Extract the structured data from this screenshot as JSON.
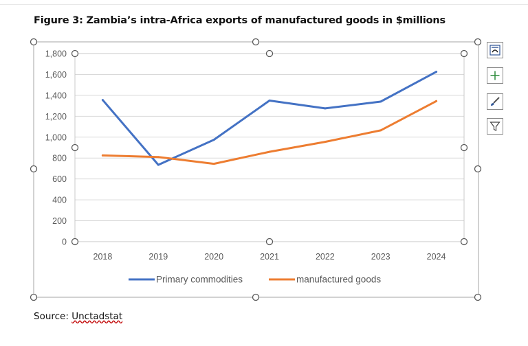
{
  "document": {
    "figure_title": "Figure 3: Zambia’s intra-Africa exports of manufactured goods in $millions",
    "source_prefix": "Source: ",
    "source_name": "Unctadstat"
  },
  "chart_tools": [
    {
      "name": "chart-layout-icon"
    },
    {
      "name": "chart-elements-icon"
    },
    {
      "name": "chart-styles-icon"
    },
    {
      "name": "chart-filters-icon"
    }
  ],
  "chart_data": {
    "type": "line",
    "title": "",
    "xlabel": "",
    "ylabel": "",
    "categories": [
      "2018",
      "2019",
      "2020",
      "2021",
      "2022",
      "2023",
      "2024"
    ],
    "ylim": [
      0,
      1800
    ],
    "yticks": [
      0,
      200,
      400,
      600,
      800,
      1000,
      1200,
      1400,
      1600,
      1800
    ],
    "ytick_labels": [
      "0",
      "200",
      "400",
      "600",
      "800",
      "1,000",
      "1,200",
      "1,400",
      "1,600",
      "1,800"
    ],
    "grid": true,
    "legend_position": "bottom",
    "series": [
      {
        "name": "Primary commodities",
        "color": "#4472C4",
        "values": [
          1355,
          735,
          975,
          1350,
          1275,
          1340,
          1625
        ]
      },
      {
        "name": "manufactured goods",
        "color": "#ED7D31",
        "values": [
          825,
          810,
          745,
          860,
          955,
          1065,
          1345
        ]
      }
    ]
  }
}
